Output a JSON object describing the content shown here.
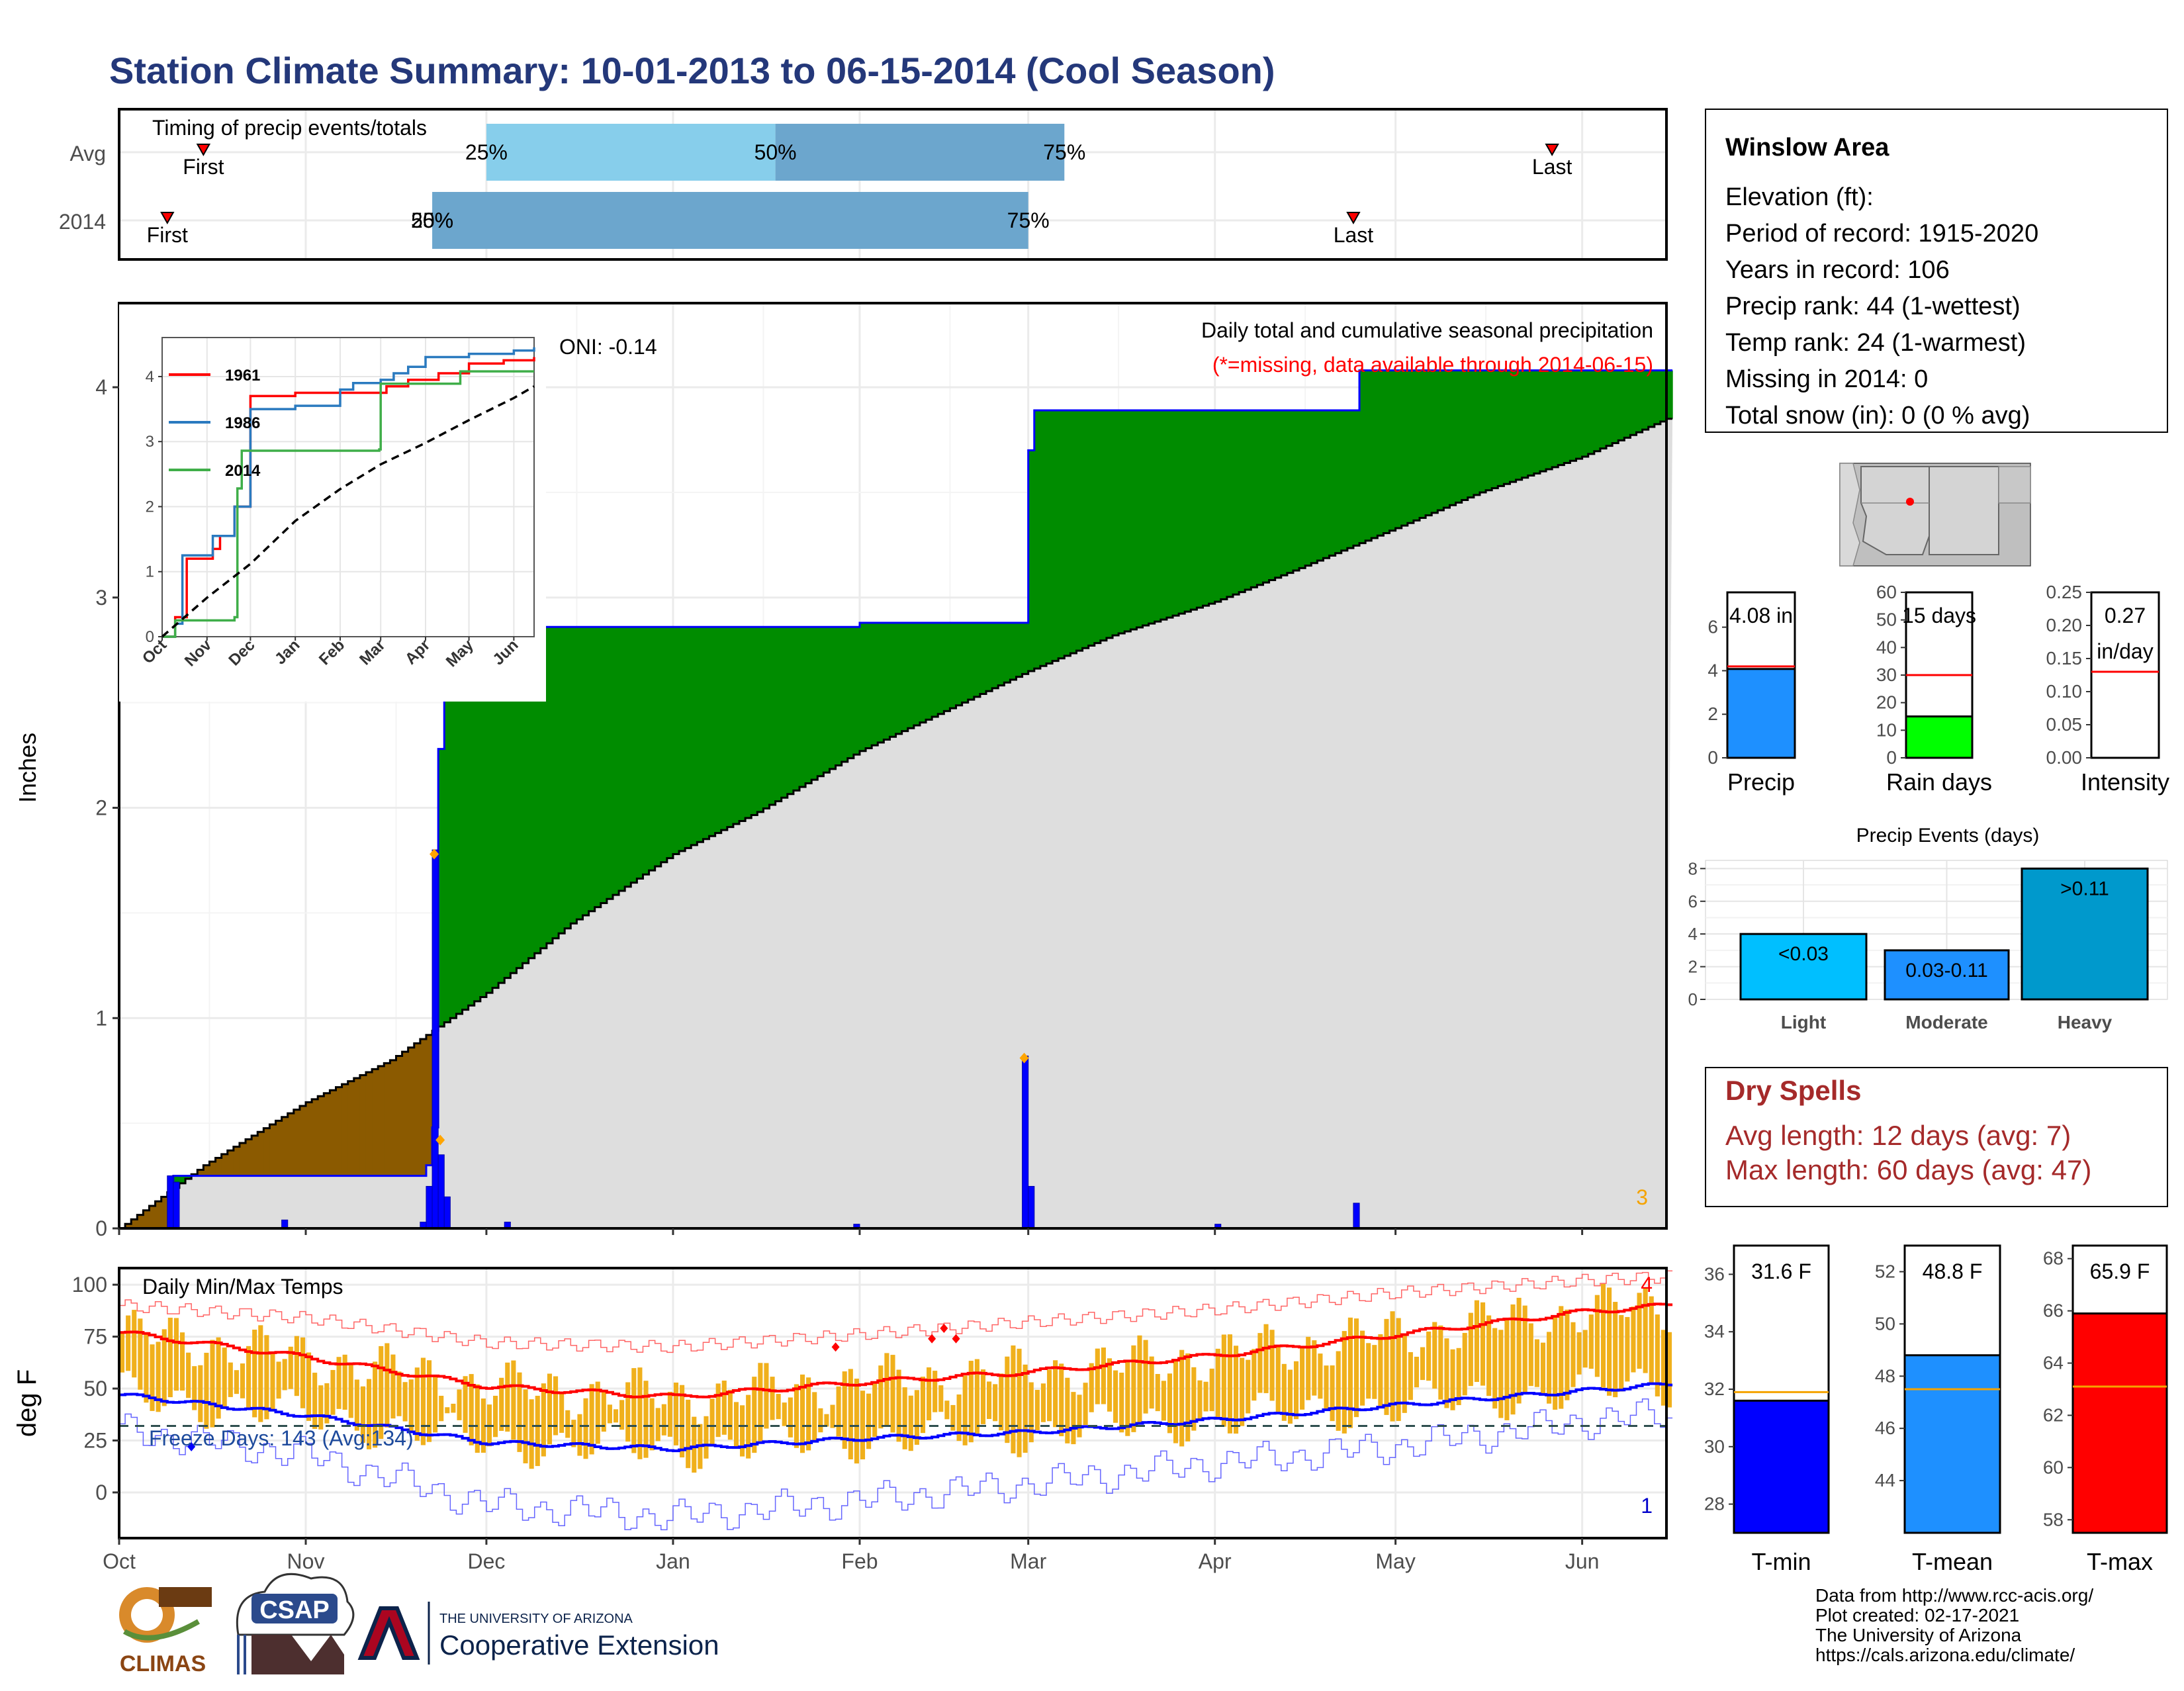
{
  "title": "Station Climate Summary: 10-01-2013 to 06-15-2014 (Cool Season)",
  "timing": {
    "label": "Timing of precip events/totals",
    "rows": [
      "Avg",
      "2014"
    ],
    "avg": {
      "first_label": "First",
      "last_label": "Last",
      "p25": "25%",
      "p50": "50%",
      "p75": "75%"
    },
    "y2014": {
      "first_label": "First",
      "last_label": "Last",
      "p25": "25%",
      "p50": "50%",
      "p75": "75%"
    }
  },
  "months": [
    "Oct",
    "Nov",
    "Dec",
    "Jan",
    "Feb",
    "Mar",
    "Apr",
    "May",
    "Jun"
  ],
  "precip_panel": {
    "ylabel": "Inches",
    "yticks": [
      "0",
      "1",
      "2",
      "3",
      "4"
    ],
    "oni": "ONI: -0.14",
    "caption": "Daily total and cumulative seasonal precipitation",
    "missing_note": "(*=missing, data available through 2014-06-15)",
    "corner_count": "3",
    "inset": {
      "yticks": [
        "0",
        "1",
        "2",
        "3",
        "4"
      ],
      "months": [
        "Oct",
        "Nov",
        "Dec",
        "Jan",
        "Feb",
        "Mar",
        "Apr",
        "May",
        "Jun"
      ],
      "legend": [
        "1961",
        "1986",
        "2014"
      ]
    }
  },
  "temp_panel": {
    "label": "Daily Min/Max Temps",
    "ylabel": "deg F",
    "yticks": [
      "0",
      "25",
      "50",
      "75",
      "100"
    ],
    "freeze": "Freeze Days: 143 (Avg:134)",
    "count_high": "4",
    "count_low": "1"
  },
  "station": {
    "name": "Winslow Area",
    "lines": [
      "Elevation (ft):",
      "Period of record: 1915-2020",
      "Years in record: 106",
      "Precip rank: 44 (1-wettest)",
      "Temp rank: 24 (1-warmest)",
      "Missing in 2014: 0",
      "Total snow (in): 0 (0 % avg)"
    ]
  },
  "summary_bars": {
    "precip": {
      "value_label": "4.08 in",
      "name": "Precip",
      "yticks": [
        "0",
        "2",
        "4",
        "6"
      ]
    },
    "rain_days": {
      "value_label": "15 days",
      "name": "Rain days",
      "yticks": [
        "0",
        "10",
        "20",
        "30",
        "40",
        "50",
        "60"
      ]
    },
    "intensity": {
      "value_label": "0.27",
      "unit": "in/day",
      "name": "Intensity",
      "yticks": [
        "0.00",
        "0.05",
        "0.10",
        "0.15",
        "0.20",
        "0.25"
      ]
    }
  },
  "events": {
    "title": "Precip Events (days)",
    "yticks": [
      "0",
      "2",
      "4",
      "6",
      "8"
    ],
    "bars": [
      {
        "inner": "<0.03",
        "name": "Light",
        "value": 4
      },
      {
        "inner": "0.03-0.11",
        "name": "Moderate",
        "value": 3
      },
      {
        "inner": ">0.11",
        "name": "Heavy",
        "value": 8
      }
    ]
  },
  "dry_spells": {
    "title": "Dry Spells",
    "avg_line": "Avg length: 12 days (avg: 7)",
    "max_line": "Max length: 60 days (avg: 47)"
  },
  "temp_bars": {
    "tmin": {
      "value_label": "31.6 F",
      "name": "T-min",
      "yticks": [
        "28",
        "30",
        "32",
        "34",
        "36"
      ]
    },
    "tmean": {
      "value_label": "48.8 F",
      "name": "T-mean",
      "yticks": [
        "44",
        "46",
        "48",
        "50",
        "52"
      ]
    },
    "tmax": {
      "value_label": "65.9 F",
      "name": "T-max",
      "yticks": [
        "58",
        "60",
        "62",
        "64",
        "66",
        "68"
      ]
    }
  },
  "footer": {
    "lines": [
      "Data from http://www.rcc-acis.org/",
      "Plot created: 02-17-2021",
      "The University of Arizona",
      "https://cals.arizona.edu/climate/"
    ],
    "logo_climas": "CLIMAS",
    "logo_csap": "CSAP",
    "logo_ua_top": "THE UNIVERSITY OF ARIZONA",
    "logo_ua_main": "Cooperative Extension"
  },
  "colors": {
    "title": "#24387a",
    "cum_2014_above": "#008c00",
    "cum_2014_below": "#8b5a00",
    "cum_avg": "#dedede",
    "daily_precip": "#0000ff",
    "temp_bar": "#f0b01c",
    "line_1961": "#ff0000",
    "line_1986": "#2a7abf",
    "line_2014": "#3fae49"
  },
  "chart_data": [
    {
      "type": "bar",
      "title": "Timing of precip events/totals",
      "categories": [
        "Avg",
        "2014"
      ],
      "series": [
        {
          "name": "First",
          "values": [
            "2013-10-15",
            "2013-10-09"
          ]
        },
        {
          "name": "25%",
          "values": [
            "2013-12-01",
            "2013-11-22"
          ]
        },
        {
          "name": "50%",
          "values": [
            "2014-01-18",
            "2013-11-22"
          ]
        },
        {
          "name": "75%",
          "values": [
            "2014-03-07",
            "2014-03-01"
          ]
        },
        {
          "name": "Last",
          "values": [
            "2014-05-27",
            "2014-04-24"
          ]
        }
      ]
    },
    {
      "type": "area",
      "title": "Daily total and cumulative seasonal precipitation",
      "ylabel": "Inches",
      "ylim": [
        0,
        4.4
      ],
      "x_range": [
        "2013-10-01",
        "2014-06-15"
      ],
      "series": [
        {
          "name": "2014 cumulative",
          "x": [
            "2013-10-01",
            "2013-10-09",
            "2013-10-10",
            "2013-11-06",
            "2013-11-21",
            "2013-11-22",
            "2013-11-23",
            "2013-11-24",
            "2013-11-25",
            "2014-01-01",
            "2014-02-01",
            "2014-02-28",
            "2014-03-01",
            "2014-03-02",
            "2014-04-24",
            "2014-04-25",
            "2014-06-15"
          ],
          "values": [
            0,
            0,
            0.25,
            0.25,
            0.3,
            0.48,
            2.28,
            2.58,
            2.86,
            2.86,
            2.88,
            2.88,
            3.7,
            3.89,
            3.89,
            4.08,
            4.08
          ]
        },
        {
          "name": "Avg cumulative",
          "x": [
            "2013-10-01",
            "2013-10-15",
            "2013-11-01",
            "2013-11-15",
            "2013-12-01",
            "2013-12-15",
            "2014-01-01",
            "2014-01-15",
            "2014-02-01",
            "2014-02-15",
            "2014-03-01",
            "2014-03-15",
            "2014-04-01",
            "2014-04-15",
            "2014-05-01",
            "2014-05-15",
            "2014-06-01",
            "2014-06-15"
          ],
          "values": [
            0,
            0.3,
            0.6,
            0.8,
            1.12,
            1.45,
            1.78,
            1.98,
            2.27,
            2.46,
            2.65,
            2.82,
            2.98,
            3.14,
            3.33,
            3.5,
            3.67,
            3.85
          ]
        },
        {
          "name": "Daily precip",
          "x": [
            "2013-10-09",
            "2013-10-10",
            "2013-10-28",
            "2013-11-20",
            "2013-11-21",
            "2013-11-22",
            "2013-11-23",
            "2013-11-24",
            "2013-12-04",
            "2014-01-31",
            "2014-02-28",
            "2014-03-01",
            "2014-04-01",
            "2014-04-24"
          ],
          "values": [
            0.25,
            0.22,
            0.04,
            0.03,
            0.2,
            1.8,
            0.35,
            0.15,
            0.03,
            0.02,
            0.82,
            0.2,
            0.02,
            0.12
          ]
        }
      ]
    },
    {
      "type": "line",
      "title": "",
      "ylim": [
        0,
        4.4
      ],
      "x_range": [
        "2013-10-01",
        "2014-06-15"
      ],
      "series": [
        {
          "name": "1961",
          "x": [
            "2013-10-01",
            "2013-10-10",
            "2013-10-18",
            "2013-11-05",
            "2013-11-10",
            "2013-11-20",
            "2013-12-01",
            "2014-01-01",
            "2014-02-01",
            "2014-02-20",
            "2014-03-05",
            "2014-03-20",
            "2014-04-01",
            "2014-04-10",
            "2014-05-01",
            "2014-05-25",
            "2014-06-15"
          ],
          "values": [
            0,
            0.3,
            1.2,
            1.35,
            1.55,
            2.0,
            3.7,
            3.75,
            3.75,
            3.75,
            3.85,
            3.95,
            3.95,
            4.05,
            4.2,
            4.25,
            4.3
          ]
        },
        {
          "name": "1986",
          "x": [
            "2013-10-01",
            "2013-10-10",
            "2013-10-15",
            "2013-11-05",
            "2013-11-20",
            "2013-12-01",
            "2014-01-01",
            "2014-02-01",
            "2014-02-10",
            "2014-03-01",
            "2014-03-10",
            "2014-03-20",
            "2014-04-01",
            "2014-05-01",
            "2014-06-01",
            "2014-06-15"
          ],
          "values": [
            0,
            0.2,
            1.25,
            1.55,
            2.0,
            3.5,
            3.55,
            3.8,
            3.9,
            3.95,
            4.05,
            4.15,
            4.3,
            4.35,
            4.4,
            4.45
          ]
        },
        {
          "name": "2014",
          "x": [
            "2013-10-01",
            "2013-10-09",
            "2013-10-10",
            "2013-11-20",
            "2013-11-22",
            "2013-11-25",
            "2014-02-28",
            "2014-03-01",
            "2014-04-24",
            "2014-04-25",
            "2014-06-15"
          ],
          "values": [
            0,
            0,
            0.25,
            0.3,
            2.28,
            2.86,
            2.88,
            3.89,
            3.89,
            4.08,
            4.08
          ]
        },
        {
          "name": "Avg",
          "x": [
            "2013-10-01",
            "2013-11-01",
            "2013-12-01",
            "2014-01-01",
            "2014-02-01",
            "2014-03-01",
            "2014-04-01",
            "2014-05-01",
            "2014-06-01",
            "2014-06-15"
          ],
          "values": [
            0,
            0.6,
            1.12,
            1.78,
            2.27,
            2.65,
            2.98,
            3.33,
            3.67,
            3.85
          ]
        }
      ]
    },
    {
      "type": "line",
      "title": "Daily Min/Max Temps",
      "ylabel": "deg F",
      "ylim": [
        -22,
        108
      ],
      "x_range": [
        "2013-10-01",
        "2014-06-15"
      ],
      "series": [
        {
          "name": "Avg max",
          "x": [
            "2013-10-01",
            "2013-11-01",
            "2013-12-01",
            "2014-01-01",
            "2014-02-01",
            "2014-03-01",
            "2014-04-01",
            "2014-05-01",
            "2014-06-01",
            "2014-06-15"
          ],
          "values": [
            77,
            65,
            51,
            46,
            53,
            58,
            66,
            76,
            87,
            90
          ]
        },
        {
          "name": "Avg min",
          "x": [
            "2013-10-01",
            "2013-11-01",
            "2013-12-01",
            "2014-01-01",
            "2014-02-01",
            "2014-03-01",
            "2014-04-01",
            "2014-05-01",
            "2014-06-01",
            "2014-06-15"
          ],
          "values": [
            47,
            37,
            24,
            21,
            26,
            29,
            35,
            42,
            49,
            52
          ]
        },
        {
          "name": "Record max",
          "x": [
            "2013-10-01",
            "2013-11-01",
            "2013-12-01",
            "2014-01-01",
            "2014-02-01",
            "2014-03-01",
            "2014-04-01",
            "2014-05-01",
            "2014-06-01",
            "2014-06-15"
          ],
          "values": [
            90,
            84,
            72,
            70,
            76,
            82,
            88,
            96,
            102,
            104
          ]
        },
        {
          "name": "Record min",
          "x": [
            "2013-10-01",
            "2013-11-01",
            "2013-12-01",
            "2014-01-01",
            "2014-02-01",
            "2014-03-01",
            "2014-04-01",
            "2014-05-01",
            "2014-06-01",
            "2014-06-15"
          ],
          "values": [
            30,
            18,
            -6,
            -12,
            -4,
            4,
            14,
            22,
            34,
            38
          ]
        },
        {
          "name": "Freeze line",
          "x": [
            "2013-10-01",
            "2014-06-15"
          ],
          "values": [
            32,
            32
          ]
        }
      ]
    },
    {
      "type": "bar",
      "title": "",
      "categories": [
        "Precip",
        "Rain days",
        "Intensity"
      ],
      "series": [
        {
          "name": "2014",
          "values": [
            4.08,
            15,
            0.27
          ]
        },
        {
          "name": "Avg",
          "values": [
            4.2,
            30,
            0.13
          ]
        }
      ]
    },
    {
      "type": "bar",
      "title": "Precip Events (days)",
      "categories": [
        "Light",
        "Moderate",
        "Heavy"
      ],
      "values": [
        4,
        3,
        8
      ],
      "ylim": [
        0,
        8.5
      ]
    },
    {
      "type": "bar",
      "title": "",
      "categories": [
        "T-min",
        "T-mean",
        "T-max"
      ],
      "series": [
        {
          "name": "2014",
          "values": [
            31.6,
            48.8,
            65.9
          ]
        },
        {
          "name": "Avg",
          "values": [
            31.9,
            47.5,
            63.1
          ]
        }
      ]
    }
  ]
}
